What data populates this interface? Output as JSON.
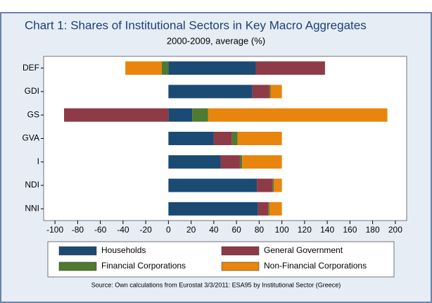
{
  "chart_data": {
    "type": "stacked-barh",
    "title": "Chart 1: Shares of Institutional Sectors in Key Macro Aggregates",
    "subtitle": "2000-2009, average (%)",
    "source": "Source: Own calculations from Eurostat 3/3/2011: ESA95 by Institutional Sector (Greece)",
    "categories": [
      "DEF",
      "GDI",
      "GS",
      "GVA",
      "I",
      "NDI",
      "NNI"
    ],
    "series": [
      {
        "name": "Households",
        "color": "#1b4a73",
        "values": [
          77,
          74,
          21,
          40,
          46,
          78,
          79
        ]
      },
      {
        "name": "General Government",
        "color": "#8e3a47",
        "values": [
          61,
          15,
          -92,
          16,
          17,
          14,
          9
        ]
      },
      {
        "name": "Financial Corporations",
        "color": "#4e7a31",
        "values": [
          -6,
          1,
          14,
          5,
          2,
          1,
          1
        ]
      },
      {
        "name": "Non-Financial Corporations",
        "color": "#e8850d",
        "values": [
          -32,
          10,
          158,
          39,
          35,
          7,
          11
        ]
      }
    ],
    "xlim": [
      -110,
      210
    ],
    "xticks": [
      -100,
      -80,
      -60,
      -40,
      -20,
      0,
      20,
      40,
      60,
      80,
      100,
      120,
      140,
      160,
      180,
      200
    ]
  }
}
